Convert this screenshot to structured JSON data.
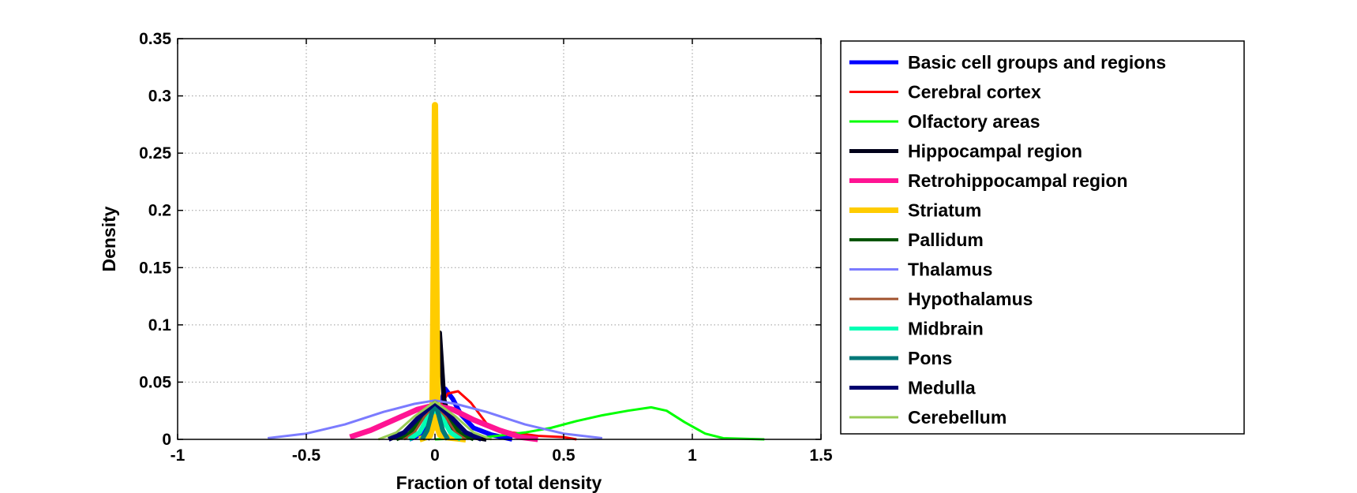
{
  "chart_data": {
    "type": "line",
    "title": "",
    "xlabel": "Fraction of total density",
    "ylabel": "Density",
    "xlim": [
      -1,
      1.5
    ],
    "ylim": [
      0,
      0.35
    ],
    "xticks": [
      "-1",
      "-0.5",
      "0",
      "0.5",
      "1",
      "1.5"
    ],
    "yticks": [
      "0",
      "0.05",
      "0.1",
      "0.15",
      "0.2",
      "0.25",
      "0.3",
      "0.35"
    ],
    "grid": true,
    "legend_position": "outside-right",
    "series": [
      {
        "name": "Basic cell groups and regions",
        "color": "#0000ff",
        "width": 6,
        "points": [
          [
            -0.1,
            0
          ],
          [
            -0.05,
            0.005
          ],
          [
            0,
            0.018
          ],
          [
            0.02,
            0.03
          ],
          [
            0.04,
            0.044
          ],
          [
            0.07,
            0.035
          ],
          [
            0.1,
            0.022
          ],
          [
            0.15,
            0.01
          ],
          [
            0.22,
            0.004
          ],
          [
            0.3,
            0
          ]
        ]
      },
      {
        "name": "Cerebral cortex",
        "color": "#ff0000",
        "width": 3,
        "points": [
          [
            -0.05,
            0
          ],
          [
            0,
            0.02
          ],
          [
            0.05,
            0.04
          ],
          [
            0.09,
            0.042
          ],
          [
            0.14,
            0.032
          ],
          [
            0.2,
            0.014
          ],
          [
            0.25,
            0.009
          ],
          [
            0.3,
            0.006
          ],
          [
            0.4,
            0.003
          ],
          [
            0.5,
            0.002
          ],
          [
            0.55,
            0
          ]
        ]
      },
      {
        "name": "Olfactory areas",
        "color": "#00ff00",
        "width": 3,
        "points": [
          [
            0,
            0
          ],
          [
            0.2,
            0.002
          ],
          [
            0.35,
            0.006
          ],
          [
            0.45,
            0.01
          ],
          [
            0.55,
            0.016
          ],
          [
            0.65,
            0.021
          ],
          [
            0.75,
            0.025
          ],
          [
            0.84,
            0.028
          ],
          [
            0.9,
            0.025
          ],
          [
            0.97,
            0.015
          ],
          [
            1.05,
            0.005
          ],
          [
            1.12,
            0.001
          ],
          [
            1.28,
            0
          ]
        ]
      },
      {
        "name": "Hippocampal region",
        "color": "#000019",
        "width": 6,
        "points": [
          [
            -0.03,
            0
          ],
          [
            -0.015,
            0.005
          ],
          [
            0,
            0.03
          ],
          [
            0.01,
            0.07
          ],
          [
            0.018,
            0.093
          ],
          [
            0.025,
            0.07
          ],
          [
            0.035,
            0.035
          ],
          [
            0.06,
            0.012
          ],
          [
            0.1,
            0.004
          ],
          [
            0.2,
            0
          ]
        ]
      },
      {
        "name": "Retrohippocampal region",
        "color": "#ff1493",
        "width": 7,
        "points": [
          [
            -0.33,
            0.002
          ],
          [
            -0.25,
            0.008
          ],
          [
            -0.15,
            0.018
          ],
          [
            -0.07,
            0.026
          ],
          [
            0,
            0.03
          ],
          [
            0.07,
            0.026
          ],
          [
            0.15,
            0.017
          ],
          [
            0.25,
            0.008
          ],
          [
            0.33,
            0.002
          ],
          [
            0.4,
            0
          ]
        ]
      },
      {
        "name": "Striatum",
        "color": "#ffcc00",
        "width": 8,
        "points": [
          [
            -0.06,
            0
          ],
          [
            -0.02,
            0.003
          ],
          [
            -0.01,
            0.01
          ],
          [
            -0.005,
            0.15
          ],
          [
            0,
            0.292
          ],
          [
            0.005,
            0.15
          ],
          [
            0.01,
            0.01
          ],
          [
            0.02,
            0.004
          ],
          [
            0.04,
            0.002
          ],
          [
            0.08,
            0.001
          ],
          [
            0.12,
            0
          ]
        ]
      },
      {
        "name": "Pallidum",
        "color": "#005500",
        "width": 5,
        "points": [
          [
            -0.15,
            0
          ],
          [
            -0.1,
            0.005
          ],
          [
            -0.05,
            0.018
          ],
          [
            0,
            0.03
          ],
          [
            0.05,
            0.018
          ],
          [
            0.1,
            0.005
          ],
          [
            0.15,
            0
          ]
        ]
      },
      {
        "name": "Thalamus",
        "color": "#7b7bff",
        "width": 3,
        "points": [
          [
            -0.65,
            0.001
          ],
          [
            -0.5,
            0.005
          ],
          [
            -0.35,
            0.013
          ],
          [
            -0.2,
            0.024
          ],
          [
            -0.08,
            0.031
          ],
          [
            0,
            0.034
          ],
          [
            0.08,
            0.031
          ],
          [
            0.2,
            0.024
          ],
          [
            0.35,
            0.013
          ],
          [
            0.5,
            0.005
          ],
          [
            0.65,
            0.001
          ]
        ]
      },
      {
        "name": "Hypothalamus",
        "color": "#a0522d",
        "width": 3,
        "points": [
          [
            -0.12,
            0
          ],
          [
            -0.08,
            0.006
          ],
          [
            -0.04,
            0.02
          ],
          [
            0,
            0.03
          ],
          [
            0.04,
            0.02
          ],
          [
            0.08,
            0.006
          ],
          [
            0.12,
            0
          ]
        ]
      },
      {
        "name": "Midbrain",
        "color": "#00ffb4",
        "width": 6,
        "points": [
          [
            -0.1,
            0
          ],
          [
            -0.06,
            0.006
          ],
          [
            -0.03,
            0.018
          ],
          [
            0,
            0.026
          ],
          [
            0.03,
            0.018
          ],
          [
            0.06,
            0.006
          ],
          [
            0.1,
            0
          ]
        ]
      },
      {
        "name": "Pons",
        "color": "#007878",
        "width": 6,
        "points": [
          [
            -0.05,
            0
          ],
          [
            -0.03,
            0.008
          ],
          [
            -0.01,
            0.025
          ],
          [
            0,
            0.03
          ],
          [
            0.01,
            0.025
          ],
          [
            0.03,
            0.008
          ],
          [
            0.05,
            0
          ]
        ]
      },
      {
        "name": "Medulla",
        "color": "#00006e",
        "width": 6,
        "points": [
          [
            -0.18,
            0
          ],
          [
            -0.12,
            0.006
          ],
          [
            -0.06,
            0.02
          ],
          [
            0,
            0.032
          ],
          [
            0.06,
            0.02
          ],
          [
            0.12,
            0.006
          ],
          [
            0.18,
            0
          ]
        ]
      },
      {
        "name": "Cerebellum",
        "color": "#99cc55",
        "width": 3,
        "points": [
          [
            -0.22,
            0
          ],
          [
            -0.15,
            0.006
          ],
          [
            -0.08,
            0.02
          ],
          [
            0,
            0.033
          ],
          [
            0.08,
            0.02
          ],
          [
            0.15,
            0.006
          ],
          [
            0.22,
            0
          ]
        ]
      }
    ]
  }
}
